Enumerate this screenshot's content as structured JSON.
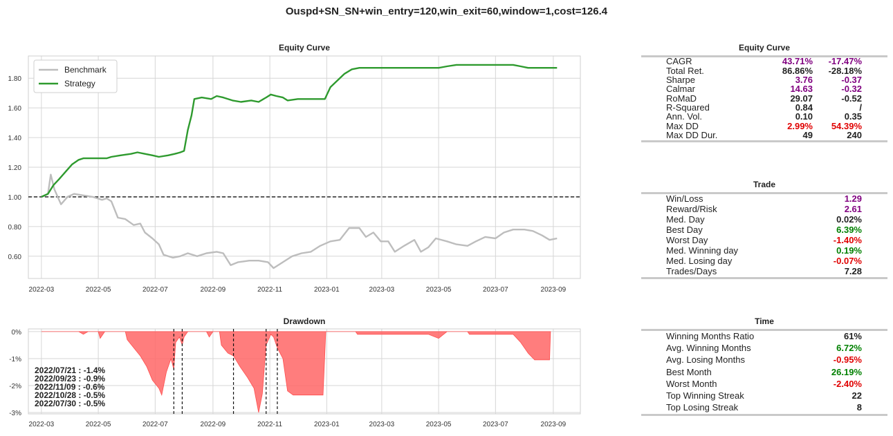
{
  "suptitle": "Ouspd+SN_SN+win_entry=120,win_exit=60,window=1,cost=126.4",
  "colors": {
    "benchmark": "#bdbdbd",
    "strategy": "#2e9a2e",
    "drawdown": "#ff6666",
    "purple": "#800080",
    "red": "#e00000",
    "green": "#008000"
  },
  "chart_data": [
    {
      "type": "line",
      "title": "Equity Curve",
      "xlabel": "",
      "ylabel": "",
      "x_ticks": [
        "2022-03",
        "2022-05",
        "2022-07",
        "2022-09",
        "2022-11",
        "2023-01",
        "2023-03",
        "2023-05",
        "2023-07",
        "2023-09"
      ],
      "y_ticks": [
        "0.60",
        "0.80",
        "1.00",
        "1.20",
        "1.40",
        "1.60",
        "1.80"
      ],
      "xlim": [
        "2022-02-15",
        "2023-09-30"
      ],
      "ylim": [
        0.45,
        1.95
      ],
      "baseline": 1.0,
      "grid": true,
      "legend_position": "top-left",
      "series": [
        {
          "name": "Benchmark",
          "points": [
            [
              "2022-03-01",
              1.0
            ],
            [
              "2022-03-08",
              1.02
            ],
            [
              "2022-03-11",
              1.15
            ],
            [
              "2022-03-15",
              1.05
            ],
            [
              "2022-03-22",
              0.95
            ],
            [
              "2022-03-29",
              1.0
            ],
            [
              "2022-04-05",
              1.02
            ],
            [
              "2022-04-15",
              1.01
            ],
            [
              "2022-04-25",
              1.0
            ],
            [
              "2022-05-05",
              0.98
            ],
            [
              "2022-05-10",
              0.99
            ],
            [
              "2022-05-15",
              0.97
            ],
            [
              "2022-05-22",
              0.86
            ],
            [
              "2022-05-30",
              0.85
            ],
            [
              "2022-06-08",
              0.81
            ],
            [
              "2022-06-15",
              0.82
            ],
            [
              "2022-06-20",
              0.76
            ],
            [
              "2022-06-28",
              0.72
            ],
            [
              "2022-07-05",
              0.68
            ],
            [
              "2022-07-10",
              0.61
            ],
            [
              "2022-07-20",
              0.59
            ],
            [
              "2022-07-28",
              0.6
            ],
            [
              "2022-08-05",
              0.62
            ],
            [
              "2022-08-15",
              0.6
            ],
            [
              "2022-08-25",
              0.62
            ],
            [
              "2022-09-05",
              0.63
            ],
            [
              "2022-09-12",
              0.62
            ],
            [
              "2022-09-20",
              0.54
            ],
            [
              "2022-09-28",
              0.56
            ],
            [
              "2022-10-10",
              0.57
            ],
            [
              "2022-10-20",
              0.57
            ],
            [
              "2022-10-30",
              0.56
            ],
            [
              "2022-11-05",
              0.52
            ],
            [
              "2022-11-15",
              0.56
            ],
            [
              "2022-11-25",
              0.6
            ],
            [
              "2022-12-05",
              0.62
            ],
            [
              "2022-12-15",
              0.63
            ],
            [
              "2022-12-25",
              0.67
            ],
            [
              "2023-01-05",
              0.7
            ],
            [
              "2023-01-15",
              0.71
            ],
            [
              "2023-01-25",
              0.79
            ],
            [
              "2023-02-05",
              0.79
            ],
            [
              "2023-02-12",
              0.73
            ],
            [
              "2023-02-20",
              0.76
            ],
            [
              "2023-02-28",
              0.7
            ],
            [
              "2023-03-08",
              0.7
            ],
            [
              "2023-03-15",
              0.63
            ],
            [
              "2023-03-25",
              0.67
            ],
            [
              "2023-04-05",
              0.71
            ],
            [
              "2023-04-12",
              0.63
            ],
            [
              "2023-04-20",
              0.66
            ],
            [
              "2023-04-28",
              0.72
            ],
            [
              "2023-05-10",
              0.7
            ],
            [
              "2023-05-20",
              0.68
            ],
            [
              "2023-06-01",
              0.67
            ],
            [
              "2023-06-10",
              0.7
            ],
            [
              "2023-06-20",
              0.73
            ],
            [
              "2023-07-01",
              0.72
            ],
            [
              "2023-07-10",
              0.76
            ],
            [
              "2023-07-20",
              0.78
            ],
            [
              "2023-08-01",
              0.78
            ],
            [
              "2023-08-10",
              0.77
            ],
            [
              "2023-08-20",
              0.74
            ],
            [
              "2023-08-28",
              0.71
            ],
            [
              "2023-09-05",
              0.72
            ]
          ]
        },
        {
          "name": "Strategy",
          "points": [
            [
              "2022-03-01",
              1.0
            ],
            [
              "2022-03-08",
              1.02
            ],
            [
              "2022-03-14",
              1.08
            ],
            [
              "2022-03-20",
              1.12
            ],
            [
              "2022-03-27",
              1.17
            ],
            [
              "2022-04-03",
              1.22
            ],
            [
              "2022-04-10",
              1.25
            ],
            [
              "2022-04-15",
              1.26
            ],
            [
              "2022-05-01",
              1.26
            ],
            [
              "2022-05-10",
              1.26
            ],
            [
              "2022-05-15",
              1.27
            ],
            [
              "2022-05-25",
              1.28
            ],
            [
              "2022-06-05",
              1.29
            ],
            [
              "2022-06-12",
              1.3
            ],
            [
              "2022-06-20",
              1.29
            ],
            [
              "2022-06-28",
              1.28
            ],
            [
              "2022-07-05",
              1.27
            ],
            [
              "2022-07-15",
              1.28
            ],
            [
              "2022-07-22",
              1.29
            ],
            [
              "2022-07-28",
              1.3
            ],
            [
              "2022-08-01",
              1.31
            ],
            [
              "2022-08-05",
              1.45
            ],
            [
              "2022-08-09",
              1.55
            ],
            [
              "2022-08-12",
              1.66
            ],
            [
              "2022-08-20",
              1.67
            ],
            [
              "2022-08-30",
              1.66
            ],
            [
              "2022-09-05",
              1.68
            ],
            [
              "2022-09-12",
              1.67
            ],
            [
              "2022-09-22",
              1.65
            ],
            [
              "2022-10-01",
              1.64
            ],
            [
              "2022-10-12",
              1.65
            ],
            [
              "2022-10-20",
              1.64
            ],
            [
              "2022-10-28",
              1.67
            ],
            [
              "2022-11-02",
              1.69
            ],
            [
              "2022-11-08",
              1.68
            ],
            [
              "2022-11-15",
              1.67
            ],
            [
              "2022-11-20",
              1.65
            ],
            [
              "2022-12-01",
              1.66
            ],
            [
              "2022-12-15",
              1.66
            ],
            [
              "2022-12-30",
              1.66
            ],
            [
              "2023-01-05",
              1.74
            ],
            [
              "2023-01-10",
              1.77
            ],
            [
              "2023-01-15",
              1.8
            ],
            [
              "2023-01-20",
              1.83
            ],
            [
              "2023-01-28",
              1.86
            ],
            [
              "2023-02-05",
              1.87
            ],
            [
              "2023-03-01",
              1.87
            ],
            [
              "2023-04-01",
              1.87
            ],
            [
              "2023-05-01",
              1.87
            ],
            [
              "2023-05-10",
              1.88
            ],
            [
              "2023-05-20",
              1.89
            ],
            [
              "2023-06-15",
              1.89
            ],
            [
              "2023-07-20",
              1.89
            ],
            [
              "2023-07-28",
              1.88
            ],
            [
              "2023-08-05",
              1.87
            ],
            [
              "2023-09-05",
              1.87
            ]
          ]
        }
      ]
    },
    {
      "type": "area",
      "title": "Drawdown",
      "xlabel": "",
      "ylabel": "",
      "x_ticks": [
        "2022-03",
        "2022-05",
        "2022-07",
        "2022-09",
        "2022-11",
        "2023-01",
        "2023-03",
        "2023-05",
        "2023-07",
        "2023-09"
      ],
      "y_ticks": [
        "0%",
        "-1%",
        "-2%",
        "-3%"
      ],
      "xlim": [
        "2022-02-15",
        "2023-09-30"
      ],
      "ylim": [
        -3.05,
        0.1
      ],
      "grid": true,
      "series": [
        {
          "name": "",
          "unit": "%",
          "points": [
            [
              "2022-03-01",
              0
            ],
            [
              "2022-04-10",
              0
            ],
            [
              "2022-04-15",
              -0.1
            ],
            [
              "2022-04-20",
              0
            ],
            [
              "2022-05-01",
              0
            ],
            [
              "2022-05-03",
              -0.25
            ],
            [
              "2022-05-08",
              0
            ],
            [
              "2022-05-30",
              0
            ],
            [
              "2022-06-01",
              -0.3
            ],
            [
              "2022-06-08",
              -0.6
            ],
            [
              "2022-06-15",
              -0.9
            ],
            [
              "2022-06-22",
              -1.3
            ],
            [
              "2022-06-28",
              -1.8
            ],
            [
              "2022-07-05",
              -2.1
            ],
            [
              "2022-07-08",
              -2.35
            ],
            [
              "2022-07-13",
              -1.5
            ],
            [
              "2022-07-18",
              -1.0
            ],
            [
              "2022-07-21",
              -1.4
            ],
            [
              "2022-07-23",
              -0.4
            ],
            [
              "2022-07-27",
              -0.2
            ],
            [
              "2022-07-30",
              -0.5
            ],
            [
              "2022-08-01",
              -0.2
            ],
            [
              "2022-08-05",
              0
            ],
            [
              "2022-08-25",
              0
            ],
            [
              "2022-08-28",
              -0.2
            ],
            [
              "2022-09-01",
              0
            ],
            [
              "2022-09-08",
              0
            ],
            [
              "2022-09-10",
              -0.5
            ],
            [
              "2022-09-17",
              -0.8
            ],
            [
              "2022-09-23",
              -0.9
            ],
            [
              "2022-09-30",
              -1.3
            ],
            [
              "2022-10-08",
              -1.7
            ],
            [
              "2022-10-15",
              -2.1
            ],
            [
              "2022-10-20",
              -3.0
            ],
            [
              "2022-10-24",
              -2.3
            ],
            [
              "2022-10-28",
              -0.5
            ],
            [
              "2022-11-02",
              -0.1
            ],
            [
              "2022-11-05",
              -0.2
            ],
            [
              "2022-11-09",
              -0.6
            ],
            [
              "2022-11-15",
              -1.0
            ],
            [
              "2022-11-20",
              -2.2
            ],
            [
              "2022-11-26",
              -2.35
            ],
            [
              "2022-12-28",
              -2.35
            ],
            [
              "2022-12-31",
              0
            ],
            [
              "2023-02-01",
              0
            ],
            [
              "2023-02-03",
              -0.1
            ],
            [
              "2023-04-20",
              -0.1
            ],
            [
              "2023-05-01",
              -0.25
            ],
            [
              "2023-05-10",
              0
            ],
            [
              "2023-06-01",
              0
            ],
            [
              "2023-06-03",
              -0.1
            ],
            [
              "2023-07-20",
              -0.1
            ],
            [
              "2023-07-28",
              -0.4
            ],
            [
              "2023-08-05",
              -0.8
            ],
            [
              "2023-08-12",
              -1.05
            ],
            [
              "2023-08-28",
              -1.05
            ],
            [
              "2023-08-29",
              0
            ]
          ]
        }
      ],
      "annotations": [
        "2022/07/21 : -1.4%",
        "2022/09/23 : -0.9%",
        "2022/11/09 : -0.6%",
        "2022/10/28 : -0.5%",
        "2022/07/30 : -0.5%"
      ],
      "vlines": [
        "2022-07-21",
        "2022-07-30",
        "2022-09-23",
        "2022-10-28",
        "2022-11-09"
      ]
    }
  ],
  "tables": [
    {
      "title": "Equity Curve",
      "rows": [
        {
          "label": "CAGR",
          "v1": "43.71%",
          "c1": "purple",
          "v2": "-17.47%",
          "c2": "purple"
        },
        {
          "label": "Total Ret.",
          "v1": "86.86%",
          "c1": "black",
          "v2": "-28.18%",
          "c2": "black"
        },
        {
          "label": "Sharpe",
          "v1": "3.76",
          "c1": "purple",
          "v2": "-0.37",
          "c2": "purple"
        },
        {
          "label": "Calmar",
          "v1": "14.63",
          "c1": "purple",
          "v2": "-0.32",
          "c2": "purple"
        },
        {
          "label": "RoMaD",
          "v1": "29.07",
          "c1": "black",
          "v2": "-0.52",
          "c2": "black"
        },
        {
          "label": "R-Squared",
          "v1": "0.84",
          "c1": "black",
          "v2": "/",
          "c2": "black"
        },
        {
          "label": "Ann. Vol.",
          "v1": "0.10",
          "c1": "black",
          "v2": "0.35",
          "c2": "black"
        },
        {
          "label": "Max DD",
          "v1": "2.99%",
          "c1": "red",
          "v2": "54.39%",
          "c2": "red"
        },
        {
          "label": "Max DD Dur.",
          "v1": "49",
          "c1": "black",
          "v2": "240",
          "c2": "black"
        }
      ]
    },
    {
      "title": "Trade",
      "rows": [
        {
          "label": "Win/Loss",
          "v1": "1.29",
          "c1": "purple"
        },
        {
          "label": "Reward/Risk",
          "v1": "2.61",
          "c1": "purple"
        },
        {
          "label": "Med. Day",
          "v1": "0.02%",
          "c1": "black"
        },
        {
          "label": "Best Day",
          "v1": "6.39%",
          "c1": "green"
        },
        {
          "label": "Worst Day",
          "v1": "-1.40%",
          "c1": "red"
        },
        {
          "label": "Med. Winning day",
          "v1": "0.19%",
          "c1": "green"
        },
        {
          "label": "Med. Losing day",
          "v1": "-0.07%",
          "c1": "red"
        },
        {
          "label": "Trades/Days",
          "v1": "7.28",
          "c1": "black"
        }
      ]
    },
    {
      "title": "Time",
      "rows": [
        {
          "label": "Winning Months Ratio",
          "v1": "61%",
          "c1": "black"
        },
        {
          "label": "Avg. Winning Months",
          "v1": "6.72%",
          "c1": "green"
        },
        {
          "label": "Avg. Losing Months",
          "v1": "-0.95%",
          "c1": "red"
        },
        {
          "label": "Best Month",
          "v1": "26.19%",
          "c1": "green"
        },
        {
          "label": "Worst Month",
          "v1": "-2.40%",
          "c1": "red"
        },
        {
          "label": "Top Winning Streak",
          "v1": "22",
          "c1": "black"
        },
        {
          "label": "Top Losing Streak",
          "v1": "8",
          "c1": "black"
        }
      ]
    }
  ]
}
